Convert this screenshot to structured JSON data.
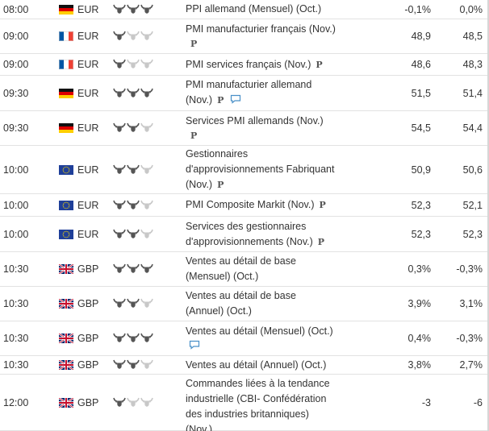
{
  "colors": {
    "bull_active": "#555555",
    "bull_inactive": "#c8c8c8",
    "row_border": "#e2e2e2",
    "text": "#333333"
  },
  "rows": [
    {
      "time": "08:00",
      "flag": "de",
      "currency": "EUR",
      "volatility": 3,
      "event_lines": [
        "PPI allemand (Mensuel) (Oct.)"
      ],
      "p_badge": false,
      "speech": false,
      "actual": "-0,1%",
      "forecast": "0,0%"
    },
    {
      "time": "09:00",
      "flag": "fr",
      "currency": "EUR",
      "volatility": 1,
      "event_lines": [
        "PMI manufacturier français (Nov.)"
      ],
      "p_badge": true,
      "p_below": true,
      "speech": false,
      "actual": "48,9",
      "forecast": "48,5"
    },
    {
      "time": "09:00",
      "flag": "fr",
      "currency": "EUR",
      "volatility": 1,
      "event_lines": [
        "PMI services français (Nov.)"
      ],
      "p_badge": true,
      "speech": false,
      "actual": "48,6",
      "forecast": "48,3"
    },
    {
      "time": "09:30",
      "flag": "de",
      "currency": "EUR",
      "volatility": 3,
      "event_lines": [
        "PMI manufacturier allemand",
        "(Nov.)"
      ],
      "p_badge": true,
      "speech": true,
      "actual": "51,5",
      "forecast": "51,4"
    },
    {
      "time": "09:30",
      "flag": "de",
      "currency": "EUR",
      "volatility": 2,
      "event_lines": [
        "Services PMI allemands (Nov.)"
      ],
      "p_badge": true,
      "p_below": true,
      "speech": false,
      "actual": "54,5",
      "forecast": "54,4"
    },
    {
      "time": "10:00",
      "flag": "eu",
      "currency": "EUR",
      "volatility": 2,
      "event_lines": [
        "Gestionnaires",
        "d'approvisionnements Fabriquant",
        "(Nov.)"
      ],
      "p_badge": true,
      "speech": false,
      "actual": "50,9",
      "forecast": "50,6"
    },
    {
      "time": "10:00",
      "flag": "eu",
      "currency": "EUR",
      "volatility": 2,
      "event_lines": [
        "PMI Composite Markit (Nov.)"
      ],
      "p_badge": true,
      "speech": false,
      "actual": "52,3",
      "forecast": "52,1"
    },
    {
      "time": "10:00",
      "flag": "eu",
      "currency": "EUR",
      "volatility": 2,
      "event_lines": [
        "Services des gestionnaires",
        "d'approvisionnements (Nov.)"
      ],
      "p_badge": true,
      "speech": false,
      "actual": "52,3",
      "forecast": "52,3"
    },
    {
      "time": "10:30",
      "flag": "gb",
      "currency": "GBP",
      "volatility": 3,
      "event_lines": [
        "Ventes au détail de base",
        "(Mensuel) (Oct.)"
      ],
      "p_badge": false,
      "speech": false,
      "actual": "0,3%",
      "forecast": "-0,3%"
    },
    {
      "time": "10:30",
      "flag": "gb",
      "currency": "GBP",
      "volatility": 2,
      "event_lines": [
        "Ventes au détail de base",
        "(Annuel) (Oct.)"
      ],
      "p_badge": false,
      "speech": false,
      "actual": "3,9%",
      "forecast": "3,1%"
    },
    {
      "time": "10:30",
      "flag": "gb",
      "currency": "GBP",
      "volatility": 3,
      "event_lines": [
        "Ventes au détail (Mensuel) (Oct.)"
      ],
      "p_badge": false,
      "speech": true,
      "speech_below": true,
      "actual": "0,4%",
      "forecast": "-0,3%"
    },
    {
      "time": "10:30",
      "flag": "gb",
      "currency": "GBP",
      "volatility": 2,
      "event_lines": [
        "Ventes au détail (Annuel) (Oct.)"
      ],
      "p_badge": false,
      "speech": false,
      "actual": "3,8%",
      "forecast": "2,7%"
    },
    {
      "time": "12:00",
      "flag": "gb",
      "currency": "GBP",
      "volatility": 1,
      "event_lines": [
        "Commandes liées à la tendance",
        "industrielle (CBI- Confédération",
        "des industries britanniques)",
        "(Nov.)"
      ],
      "p_badge": false,
      "speech": false,
      "actual": "-3",
      "forecast": "-6"
    }
  ]
}
